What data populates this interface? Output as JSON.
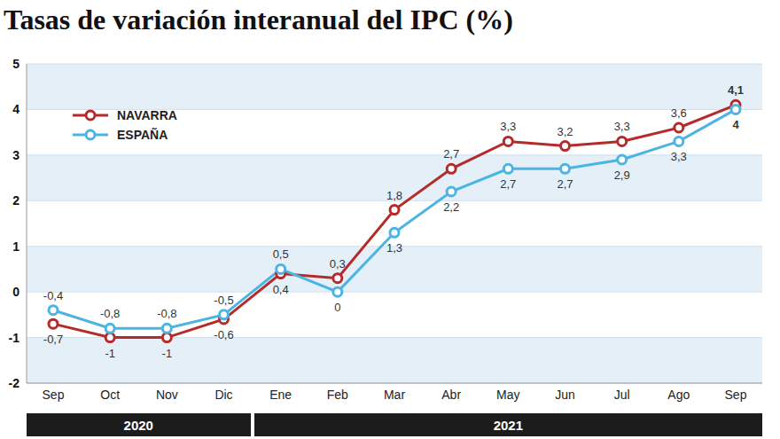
{
  "chart_data": {
    "type": "line",
    "title": "Tasas de variación interanual del IPC (%)",
    "categories": [
      "Sep",
      "Oct",
      "Nov",
      "Dic",
      "Ene",
      "Feb",
      "Mar",
      "Abr",
      "May",
      "Jun",
      "Jul",
      "Ago",
      "Sep"
    ],
    "x_groups": [
      {
        "label": "2020",
        "first": 0,
        "last": 3
      },
      {
        "label": "2021",
        "first": 4,
        "last": 12
      }
    ],
    "series": [
      {
        "name": "NAVARRA",
        "color": "#b52b2b",
        "marker": "circle",
        "line_style": "solid",
        "values": [
          -0.7,
          -1,
          -1,
          -0.6,
          0.4,
          0.3,
          1.8,
          2.7,
          3.3,
          3.2,
          3.3,
          3.6,
          4.1
        ],
        "value_labels": [
          "-0,7",
          "-1",
          "-1",
          "-0,6",
          "0,4",
          "0,3",
          "1,8",
          "2,7",
          "3,3",
          "3,2",
          "3,3",
          "3,6",
          "4,1"
        ]
      },
      {
        "name": "ESPAÑA",
        "color": "#4cb4e2",
        "marker": "circle",
        "line_style": "solid",
        "values": [
          -0.4,
          -0.8,
          -0.8,
          -0.5,
          0.5,
          0,
          1.3,
          2.2,
          2.7,
          2.7,
          2.9,
          3.3,
          4
        ],
        "value_labels": [
          "-0,4",
          "-0,8",
          "-0,8",
          "-0,5",
          "0,5",
          "0",
          "1,3",
          "2,2",
          "2,7",
          "2,7",
          "2,9",
          "3,3",
          "4"
        ]
      }
    ],
    "ylim": [
      -2,
      5
    ],
    "yticks": [
      -2,
      -1,
      0,
      1,
      2,
      3,
      4,
      5
    ],
    "grid": true,
    "legend": "upper left",
    "data_labels": true
  }
}
